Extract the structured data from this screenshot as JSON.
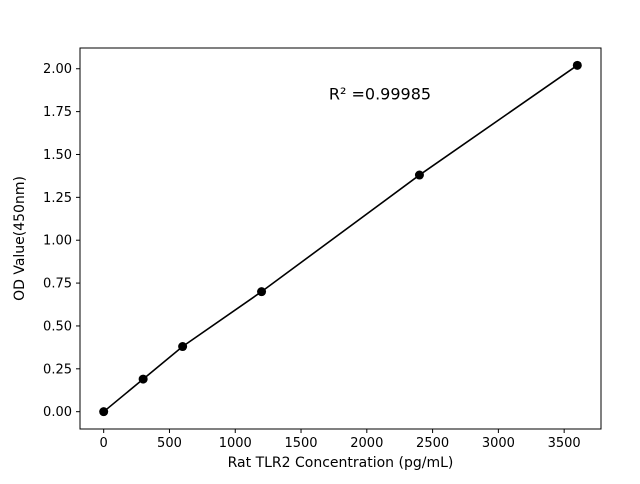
{
  "figure": {
    "background": "#ffffff"
  },
  "chart_data": {
    "type": "scatter",
    "x": [
      0,
      300,
      600,
      1200,
      2400,
      3600
    ],
    "y": [
      0.0,
      0.19,
      0.38,
      0.7,
      1.38,
      2.02
    ],
    "title": "",
    "xlabel": "Rat TLR2 Concentration (pg/mL)",
    "ylabel": "OD Value(450nm)",
    "annotation": {
      "text": "R² =0.99985",
      "x": 2100,
      "y": 1.82
    },
    "xlim": [
      -180,
      3780
    ],
    "ylim": [
      -0.101,
      2.121
    ],
    "xticks": [
      0,
      500,
      1000,
      1500,
      2000,
      2500,
      3000,
      3500
    ],
    "yticks": [
      0,
      0.25,
      0.5,
      0.75,
      1,
      1.25,
      1.5,
      1.75,
      2
    ],
    "grid": false,
    "legend": "none",
    "line_color": "#000000",
    "marker_color": "#000000",
    "marker": "circle",
    "frame_color": "#000000"
  }
}
